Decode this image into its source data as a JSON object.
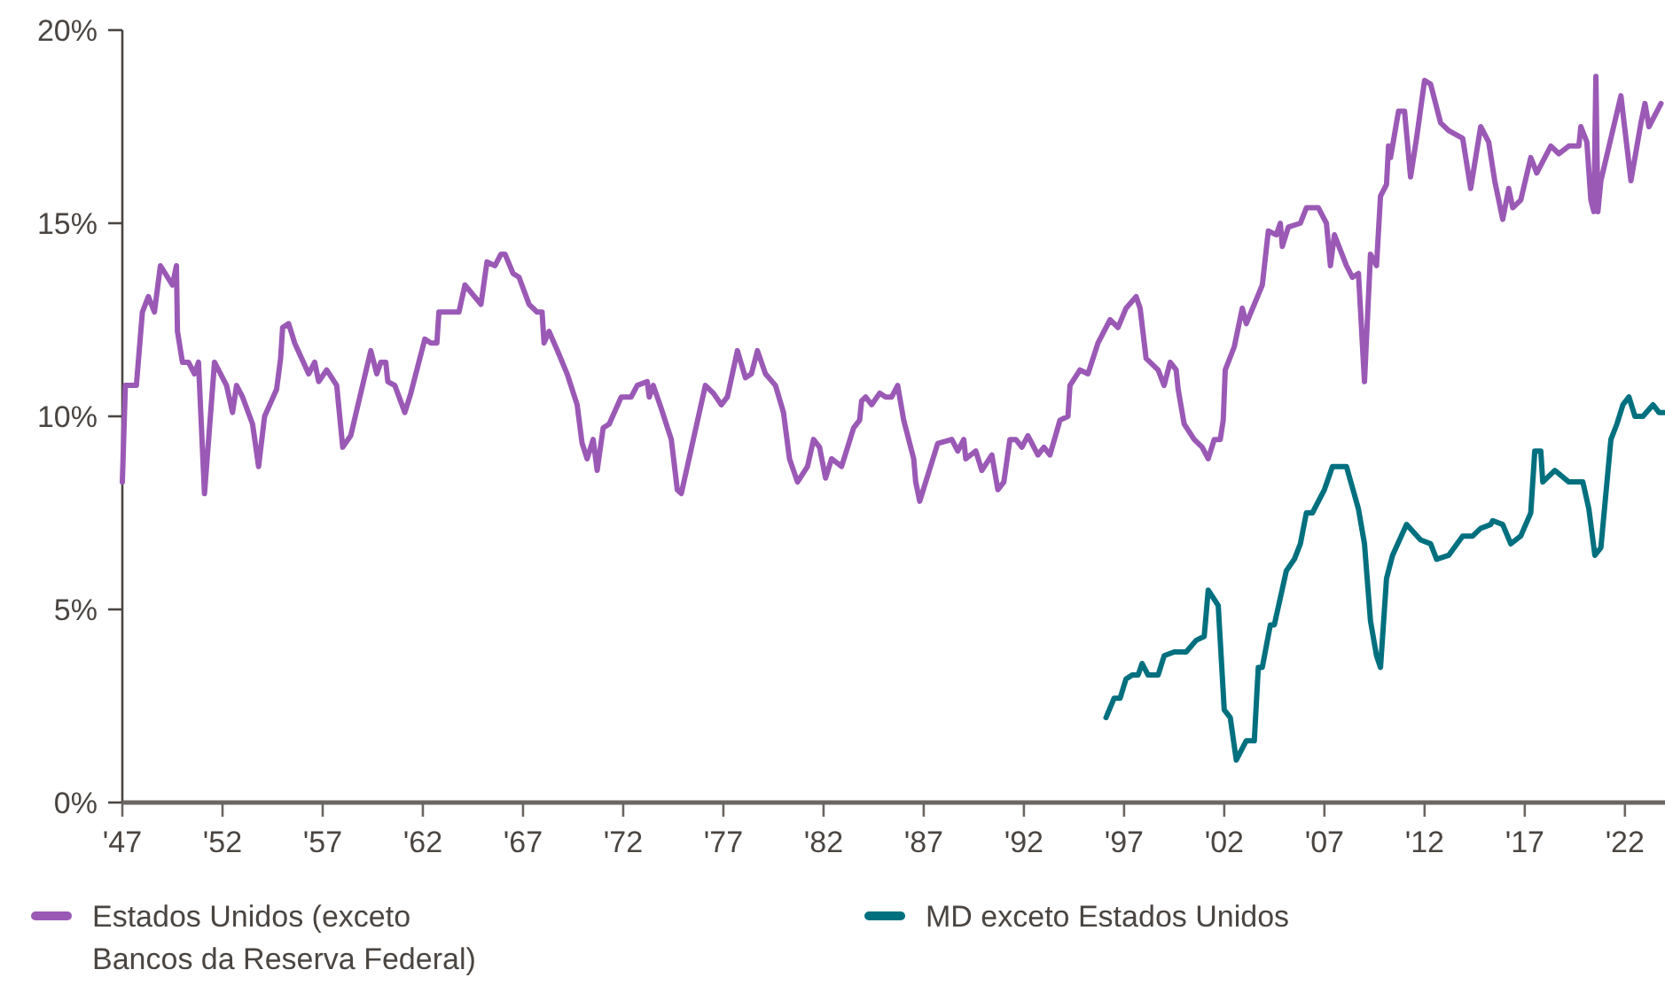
{
  "chart_data": {
    "type": "line",
    "xlim": [
      1947,
      2024
    ],
    "xticks": [
      {
        "value": 1947,
        "label": "'47"
      },
      {
        "value": 1952,
        "label": "'52"
      },
      {
        "value": 1957,
        "label": "'57"
      },
      {
        "value": 1962,
        "label": "'62"
      },
      {
        "value": 1967,
        "label": "'67"
      },
      {
        "value": 1972,
        "label": "'72"
      },
      {
        "value": 1977,
        "label": "'77"
      },
      {
        "value": 1982,
        "label": "'82"
      },
      {
        "value": 1987,
        "label": "'87"
      },
      {
        "value": 1992,
        "label": "'92"
      },
      {
        "value": 1997,
        "label": "'97"
      },
      {
        "value": 2002,
        "label": "'02"
      },
      {
        "value": 2007,
        "label": "'07"
      },
      {
        "value": 2012,
        "label": "'12"
      },
      {
        "value": 2017,
        "label": "'17"
      },
      {
        "value": 2022,
        "label": "'22"
      }
    ],
    "ylim": [
      0,
      20
    ],
    "yticks": [
      {
        "value": 0,
        "label": "0%"
      },
      {
        "value": 5,
        "label": "5%"
      },
      {
        "value": 10,
        "label": "10%"
      },
      {
        "value": 15,
        "label": "15%"
      },
      {
        "value": 20,
        "label": "20%"
      }
    ],
    "grid": false,
    "legend": "bottom",
    "line_style": "solid",
    "marker": "none",
    "series": [
      {
        "name": "Estados Unidos (exceto Bancos da Reserva Federal)",
        "color": "#9b59b6",
        "x": [
          1947.0,
          1947.15,
          1947.7,
          1948.0,
          1948.3,
          1948.6,
          1948.9,
          1949.5,
          1949.7,
          1949.75,
          1950.0,
          1950.3,
          1950.6,
          1950.8,
          1951.1,
          1951.6,
          1952.2,
          1952.5,
          1952.7,
          1953.0,
          1953.5,
          1953.8,
          1954.1,
          1954.7,
          1954.9,
          1955.0,
          1955.3,
          1955.6,
          1956.3,
          1956.6,
          1956.8,
          1957.2,
          1957.7,
          1958.0,
          1958.4,
          1959.4,
          1959.7,
          1959.9,
          1960.15,
          1960.25,
          1960.6,
          1961.1,
          1961.4,
          1962.1,
          1962.4,
          1962.7,
          1962.8,
          1963.3,
          1963.8,
          1964.1,
          1964.9,
          1965.2,
          1965.6,
          1965.9,
          1966.1,
          1966.5,
          1966.8,
          1967.3,
          1967.7,
          1967.95,
          1968.05,
          1968.3,
          1968.8,
          1969.2,
          1969.7,
          1969.95,
          1970.2,
          1970.5,
          1970.7,
          1971.0,
          1971.3,
          1971.9,
          1972.4,
          1972.7,
          1973.2,
          1973.3,
          1973.5,
          1973.9,
          1974.4,
          1974.7,
          1974.9,
          1976.1,
          1976.5,
          1976.9,
          1977.2,
          1977.7,
          1978.1,
          1978.4,
          1978.7,
          1979.1,
          1979.6,
          1980.0,
          1980.3,
          1980.7,
          1981.2,
          1981.5,
          1981.8,
          1982.1,
          1982.4,
          1982.9,
          1983.5,
          1983.8,
          1983.9,
          1984.1,
          1984.4,
          1984.8,
          1985.1,
          1985.4,
          1985.7,
          1986.0,
          1986.5,
          1986.6,
          1986.8,
          1987.1,
          1987.7,
          1988.4,
          1988.7,
          1989.0,
          1989.1,
          1989.6,
          1989.9,
          1990.4,
          1990.7,
          1991.0,
          1991.3,
          1991.6,
          1991.9,
          1992.2,
          1992.7,
          1993.0,
          1993.3,
          1993.8,
          1994.2,
          1994.3,
          1994.8,
          1995.2,
          1995.7,
          1996.3,
          1996.7,
          1997.1,
          1997.6,
          1997.8,
          1998.1,
          1998.7,
          1999.0,
          1999.3,
          1999.6,
          1999.7,
          2000.0,
          2000.5,
          2000.9,
          2001.2,
          2001.5,
          2001.8,
          2001.95,
          2002.05,
          2002.5,
          2002.9,
          2003.1,
          2003.9,
          2004.2,
          2004.6,
          2004.8,
          2004.9,
          2005.2,
          2005.8,
          2006.1,
          2006.4,
          2006.7,
          2007.1,
          2007.3,
          2007.5,
          2008.1,
          2008.4,
          2008.7,
          2009.0,
          2009.3,
          2009.6,
          2009.8,
          2010.1,
          2010.2,
          2010.3,
          2010.7,
          2011.0,
          2011.3,
          2011.6,
          2012.0,
          2012.3,
          2012.8,
          2013.2,
          2013.9,
          2014.3,
          2014.8,
          2015.2,
          2015.5,
          2015.9,
          2016.2,
          2016.4,
          2016.8,
          2017.3,
          2017.6,
          2018.3,
          2018.7,
          2019.2,
          2019.7,
          2019.8,
          2020.1,
          2020.3,
          2020.45,
          2020.55,
          2020.65,
          2020.8,
          2021.8,
          2022.3,
          2022.8,
          2023.0,
          2023.2,
          2023.8
        ],
        "values": [
          8.3,
          10.8,
          10.8,
          12.7,
          13.1,
          12.7,
          13.9,
          13.4,
          13.9,
          12.2,
          11.4,
          11.4,
          11.1,
          11.4,
          8.0,
          11.4,
          10.8,
          10.1,
          10.8,
          10.5,
          9.8,
          8.7,
          10.0,
          10.7,
          11.5,
          12.3,
          12.4,
          11.9,
          11.1,
          11.4,
          10.9,
          11.2,
          10.8,
          9.2,
          9.5,
          11.7,
          11.1,
          11.4,
          11.4,
          10.9,
          10.8,
          10.1,
          10.6,
          12.0,
          11.9,
          11.9,
          12.7,
          12.7,
          12.7,
          13.4,
          12.9,
          14.0,
          13.9,
          14.2,
          14.2,
          13.7,
          13.6,
          12.9,
          12.7,
          12.7,
          11.9,
          12.2,
          11.6,
          11.1,
          10.3,
          9.3,
          8.9,
          9.4,
          8.6,
          9.7,
          9.8,
          10.5,
          10.5,
          10.8,
          10.9,
          10.5,
          10.8,
          10.2,
          9.4,
          8.1,
          8.0,
          10.8,
          10.6,
          10.3,
          10.5,
          11.7,
          11.0,
          11.1,
          11.7,
          11.1,
          10.8,
          10.1,
          8.9,
          8.3,
          8.7,
          9.4,
          9.2,
          8.4,
          8.9,
          8.7,
          9.7,
          9.9,
          10.4,
          10.5,
          10.3,
          10.6,
          10.5,
          10.5,
          10.8,
          9.9,
          8.9,
          8.3,
          7.8,
          8.3,
          9.3,
          9.4,
          9.1,
          9.4,
          8.9,
          9.1,
          8.6,
          9.0,
          8.1,
          8.3,
          9.4,
          9.4,
          9.2,
          9.5,
          9.0,
          9.2,
          9.0,
          9.9,
          10.0,
          10.8,
          11.2,
          11.1,
          11.9,
          12.5,
          12.3,
          12.8,
          13.1,
          12.8,
          11.5,
          11.2,
          10.8,
          11.4,
          11.2,
          10.7,
          9.8,
          9.4,
          9.2,
          8.9,
          9.4,
          9.4,
          9.9,
          11.2,
          11.8,
          12.8,
          12.4,
          13.4,
          14.8,
          14.7,
          15.0,
          14.4,
          14.9,
          15.0,
          15.4,
          15.4,
          15.4,
          15.0,
          13.9,
          14.7,
          13.9,
          13.6,
          13.7,
          10.9,
          14.2,
          13.9,
          15.7,
          16.0,
          17.0,
          16.7,
          17.9,
          17.9,
          16.2,
          17.2,
          18.7,
          18.6,
          17.6,
          17.4,
          17.2,
          15.9,
          17.5,
          17.1,
          16.1,
          15.1,
          15.9,
          15.4,
          15.6,
          16.7,
          16.3,
          17.0,
          16.8,
          17.0,
          17.0,
          17.5,
          17.1,
          15.6,
          15.3,
          18.8,
          15.3,
          16.1,
          18.3,
          16.1,
          17.6,
          18.1,
          17.5,
          18.1
        ]
      },
      {
        "name": "MD exceto Estados Unidos",
        "color": "#00707f",
        "x": [
          1996.1,
          1996.5,
          1996.8,
          1997.1,
          1997.4,
          1997.7,
          1997.9,
          1998.2,
          1998.7,
          1999.0,
          1999.5,
          2000.1,
          2000.6,
          2001.0,
          2001.2,
          2001.7,
          2002.0,
          2002.3,
          2002.6,
          2003.1,
          2003.5,
          2003.7,
          2003.9,
          2004.3,
          2004.5,
          2005.1,
          2005.5,
          2005.8,
          2006.1,
          2006.4,
          2007.0,
          2007.4,
          2008.1,
          2008.7,
          2009.0,
          2009.3,
          2009.6,
          2009.8,
          2010.1,
          2010.4,
          2011.1,
          2011.8,
          2012.3,
          2012.6,
          2013.2,
          2013.9,
          2014.4,
          2014.8,
          2015.3,
          2015.4,
          2015.9,
          2016.3,
          2016.8,
          2017.3,
          2017.5,
          2017.8,
          2017.9,
          2018.5,
          2019.2,
          2019.9,
          2020.2,
          2020.5,
          2020.8,
          2021.3,
          2021.6,
          2021.9,
          2022.2,
          2022.5,
          2022.9,
          2023.4,
          2023.7,
          2024.0
        ],
        "values": [
          2.2,
          2.7,
          2.7,
          3.2,
          3.3,
          3.3,
          3.6,
          3.3,
          3.3,
          3.8,
          3.9,
          3.9,
          4.2,
          4.3,
          5.5,
          5.1,
          2.4,
          2.2,
          1.1,
          1.6,
          1.6,
          3.5,
          3.5,
          4.6,
          4.6,
          6.0,
          6.3,
          6.7,
          7.5,
          7.5,
          8.1,
          8.7,
          8.7,
          7.6,
          6.7,
          4.7,
          3.8,
          3.5,
          5.8,
          6.4,
          7.2,
          6.8,
          6.7,
          6.3,
          6.4,
          6.9,
          6.9,
          7.1,
          7.2,
          7.3,
          7.2,
          6.7,
          6.9,
          7.5,
          9.1,
          9.1,
          8.3,
          8.6,
          8.3,
          8.3,
          7.6,
          6.4,
          6.6,
          9.4,
          9.8,
          10.3,
          10.5,
          10.0,
          10.0,
          10.3,
          10.1,
          10.1
        ]
      }
    ]
  }
}
